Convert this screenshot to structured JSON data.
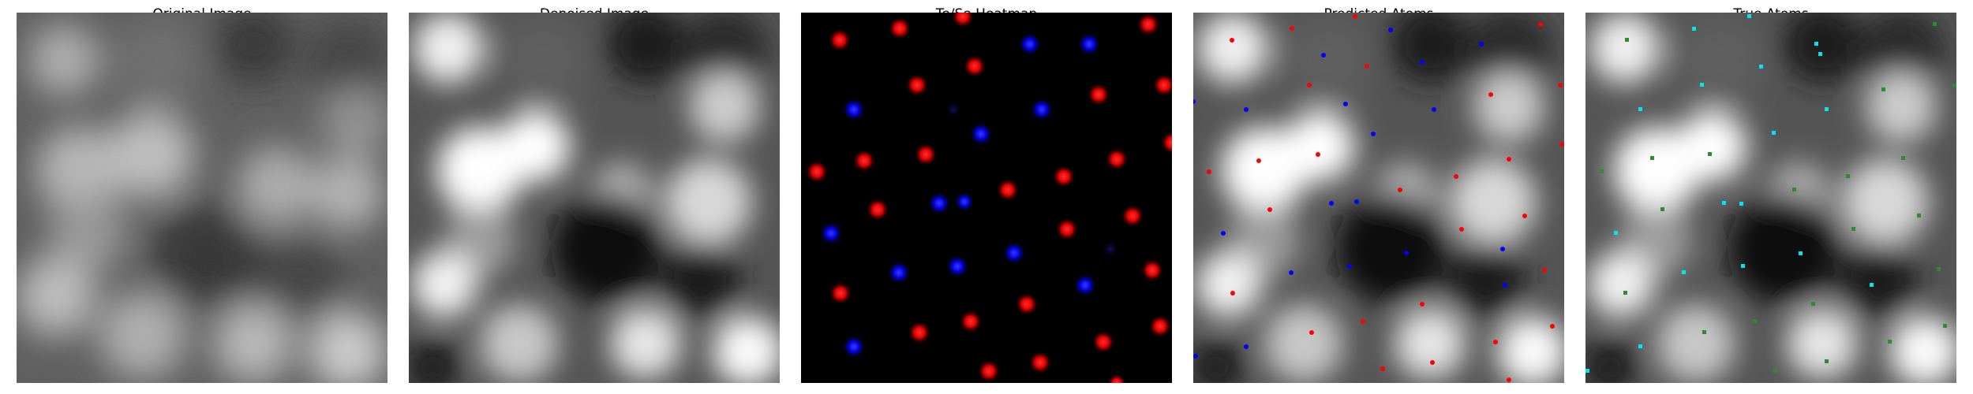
{
  "panels": [
    {
      "title": "Original Image",
      "kind": "noisy"
    },
    {
      "title": "Denoised Image",
      "kind": "denoised"
    },
    {
      "title": "Te/Se Heatmap",
      "kind": "heatmap"
    },
    {
      "title": "Predicted Atoms",
      "kind": "pred"
    },
    {
      "title": "True Atoms",
      "kind": "true"
    }
  ],
  "colors": {
    "te_red": "#ff0000",
    "se_blue": "#0000ff",
    "true_green": "#2e8b2e",
    "true_cyan": "#00e5ee",
    "heatmap_bg": "#000000"
  }
}
